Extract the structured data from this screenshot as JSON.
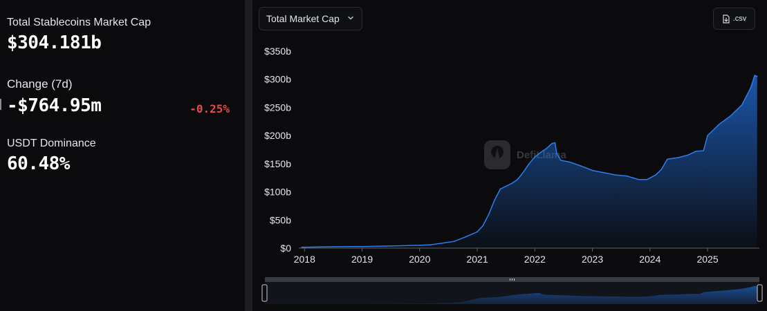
{
  "stats": {
    "market_cap_label": "Total Stablecoins Market Cap",
    "market_cap_value": "$304.181b",
    "change_label": "Change (7d)",
    "change_value": "-$764.95m",
    "change_pct": "-0.25%",
    "dominance_label": "USDT Dominance",
    "dominance_value": "60.48%"
  },
  "controls": {
    "metric_select": "Total Market Cap",
    "csv_label": ".csv"
  },
  "watermark": "DefiLlama",
  "colors": {
    "accent": "#2172e5",
    "negative": "#e24b4b",
    "panel": "#0b0b0d",
    "page": "#17181c"
  },
  "chart_data": {
    "type": "area",
    "title": "",
    "xlabel": "",
    "ylabel": "",
    "y_unit": "b",
    "ylim": [
      0,
      350
    ],
    "xlim": [
      2017.9,
      2025.9
    ],
    "yticks": [
      {
        "value": 0,
        "label": "$0"
      },
      {
        "value": 50,
        "label": "$50b"
      },
      {
        "value": 100,
        "label": "$100b"
      },
      {
        "value": 150,
        "label": "$150b"
      },
      {
        "value": 200,
        "label": "$200b"
      },
      {
        "value": 250,
        "label": "$250b"
      },
      {
        "value": 300,
        "label": "$300b"
      },
      {
        "value": 350,
        "label": "$350b"
      }
    ],
    "xticks": [
      {
        "value": 2018,
        "label": "2018"
      },
      {
        "value": 2019,
        "label": "2019"
      },
      {
        "value": 2020,
        "label": "2020"
      },
      {
        "value": 2021,
        "label": "2021"
      },
      {
        "value": 2022,
        "label": "2022"
      },
      {
        "value": 2023,
        "label": "2023"
      },
      {
        "value": 2024,
        "label": "2024"
      },
      {
        "value": 2025,
        "label": "2025"
      }
    ],
    "grid": false,
    "legend": "none",
    "series": [
      {
        "points": [
          [
            2017.95,
            1.5
          ],
          [
            2018.5,
            2.5
          ],
          [
            2019.0,
            2.8
          ],
          [
            2019.5,
            3.8
          ],
          [
            2020.0,
            5.0
          ],
          [
            2020.2,
            6.0
          ],
          [
            2020.4,
            9.0
          ],
          [
            2020.6,
            12.0
          ],
          [
            2020.8,
            20.0
          ],
          [
            2021.0,
            29.0
          ],
          [
            2021.1,
            40.0
          ],
          [
            2021.2,
            60.0
          ],
          [
            2021.3,
            85.0
          ],
          [
            2021.4,
            105.0
          ],
          [
            2021.5,
            110.0
          ],
          [
            2021.6,
            115.0
          ],
          [
            2021.7,
            122.0
          ],
          [
            2021.8,
            135.0
          ],
          [
            2021.9,
            150.0
          ],
          [
            2022.0,
            162.0
          ],
          [
            2022.1,
            170.0
          ],
          [
            2022.2,
            177.0
          ],
          [
            2022.3,
            186.0
          ],
          [
            2022.35,
            187.0
          ],
          [
            2022.38,
            168.0
          ],
          [
            2022.45,
            156.0
          ],
          [
            2022.6,
            153.0
          ],
          [
            2022.8,
            146.0
          ],
          [
            2023.0,
            138.0
          ],
          [
            2023.2,
            134.0
          ],
          [
            2023.4,
            130.0
          ],
          [
            2023.6,
            128.0
          ],
          [
            2023.8,
            122.0
          ],
          [
            2023.95,
            122.0
          ],
          [
            2024.1,
            130.0
          ],
          [
            2024.2,
            140.0
          ],
          [
            2024.3,
            158.0
          ],
          [
            2024.5,
            161.0
          ],
          [
            2024.65,
            165.0
          ],
          [
            2024.8,
            172.0
          ],
          [
            2024.93,
            173.0
          ],
          [
            2025.0,
            200.0
          ],
          [
            2025.2,
            220.0
          ],
          [
            2025.4,
            235.0
          ],
          [
            2025.6,
            255.0
          ],
          [
            2025.75,
            285.0
          ],
          [
            2025.82,
            307.0
          ],
          [
            2025.86,
            305.0
          ]
        ]
      }
    ]
  }
}
